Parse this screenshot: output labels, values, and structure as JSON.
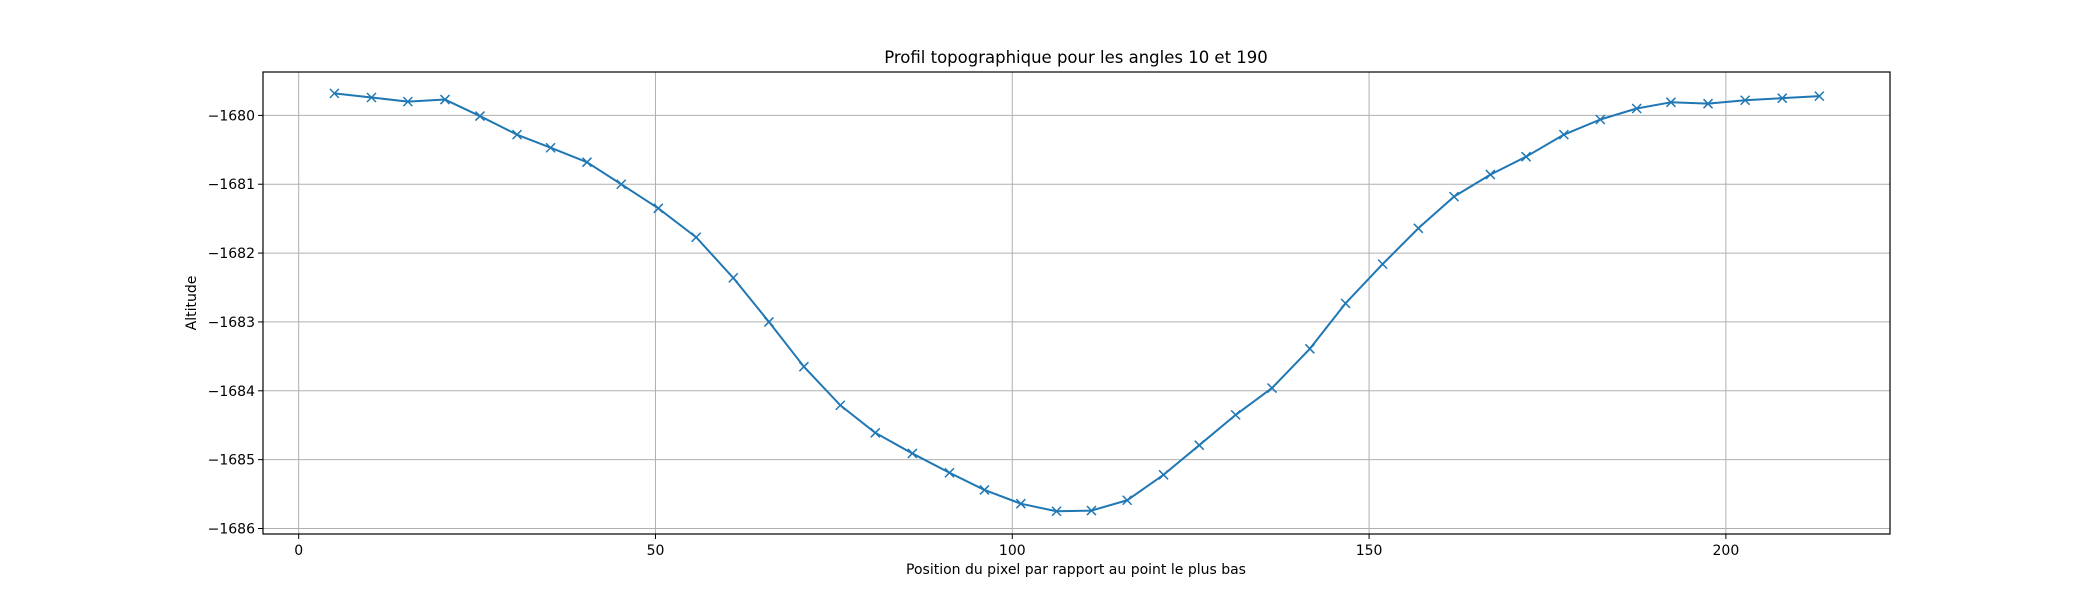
{
  "chart_data": {
    "type": "line",
    "title": "Profil topographique pour les angles 10 et 190",
    "xlabel": "Position du pixel par rapport au point le plus bas",
    "ylabel": "Altitude",
    "xlim": [
      -5,
      223
    ],
    "ylim": [
      -1686.08,
      -1679.37
    ],
    "xticks": [
      0,
      50,
      100,
      150,
      200
    ],
    "yticks": [
      -1680,
      -1681,
      -1682,
      -1683,
      -1684,
      -1685,
      -1686
    ],
    "xtick_labels": [
      "0",
      "50",
      "100",
      "150",
      "200"
    ],
    "ytick_labels": [
      "−1680",
      "−1681",
      "−1682",
      "−1683",
      "−1684",
      "−1685",
      "−1686"
    ],
    "grid": true,
    "legend": false,
    "marker": "x",
    "line_color": "#1f77b4",
    "series": [
      {
        "x": [
          5.0,
          10.2,
          15.3,
          20.5,
          25.4,
          30.6,
          35.3,
          40.4,
          45.2,
          50.4,
          55.7,
          60.9,
          65.9,
          70.8,
          75.9,
          80.8,
          86.0,
          91.2,
          96.1,
          101.2,
          106.2,
          111.1,
          116.1,
          121.2,
          126.2,
          131.3,
          136.4,
          141.7,
          146.7,
          151.9,
          156.9,
          161.9,
          167.0,
          172.0,
          177.3,
          182.4,
          187.5,
          192.3,
          197.5,
          202.7,
          207.9,
          213.1
        ],
        "y": [
          -1679.68,
          -1679.74,
          -1679.8,
          -1679.77,
          -1680.01,
          -1680.28,
          -1680.47,
          -1680.68,
          -1681.0,
          -1681.35,
          -1681.77,
          -1682.36,
          -1683.0,
          -1683.65,
          -1684.21,
          -1684.61,
          -1684.91,
          -1685.19,
          -1685.44,
          -1685.64,
          -1685.75,
          -1685.74,
          -1685.59,
          -1685.22,
          -1684.79,
          -1684.35,
          -1683.96,
          -1683.39,
          -1682.73,
          -1682.16,
          -1681.64,
          -1681.18,
          -1680.86,
          -1680.6,
          -1680.28,
          -1680.06,
          -1679.9,
          -1679.81,
          -1679.83,
          -1679.78,
          -1679.75,
          -1679.72
        ]
      }
    ]
  }
}
